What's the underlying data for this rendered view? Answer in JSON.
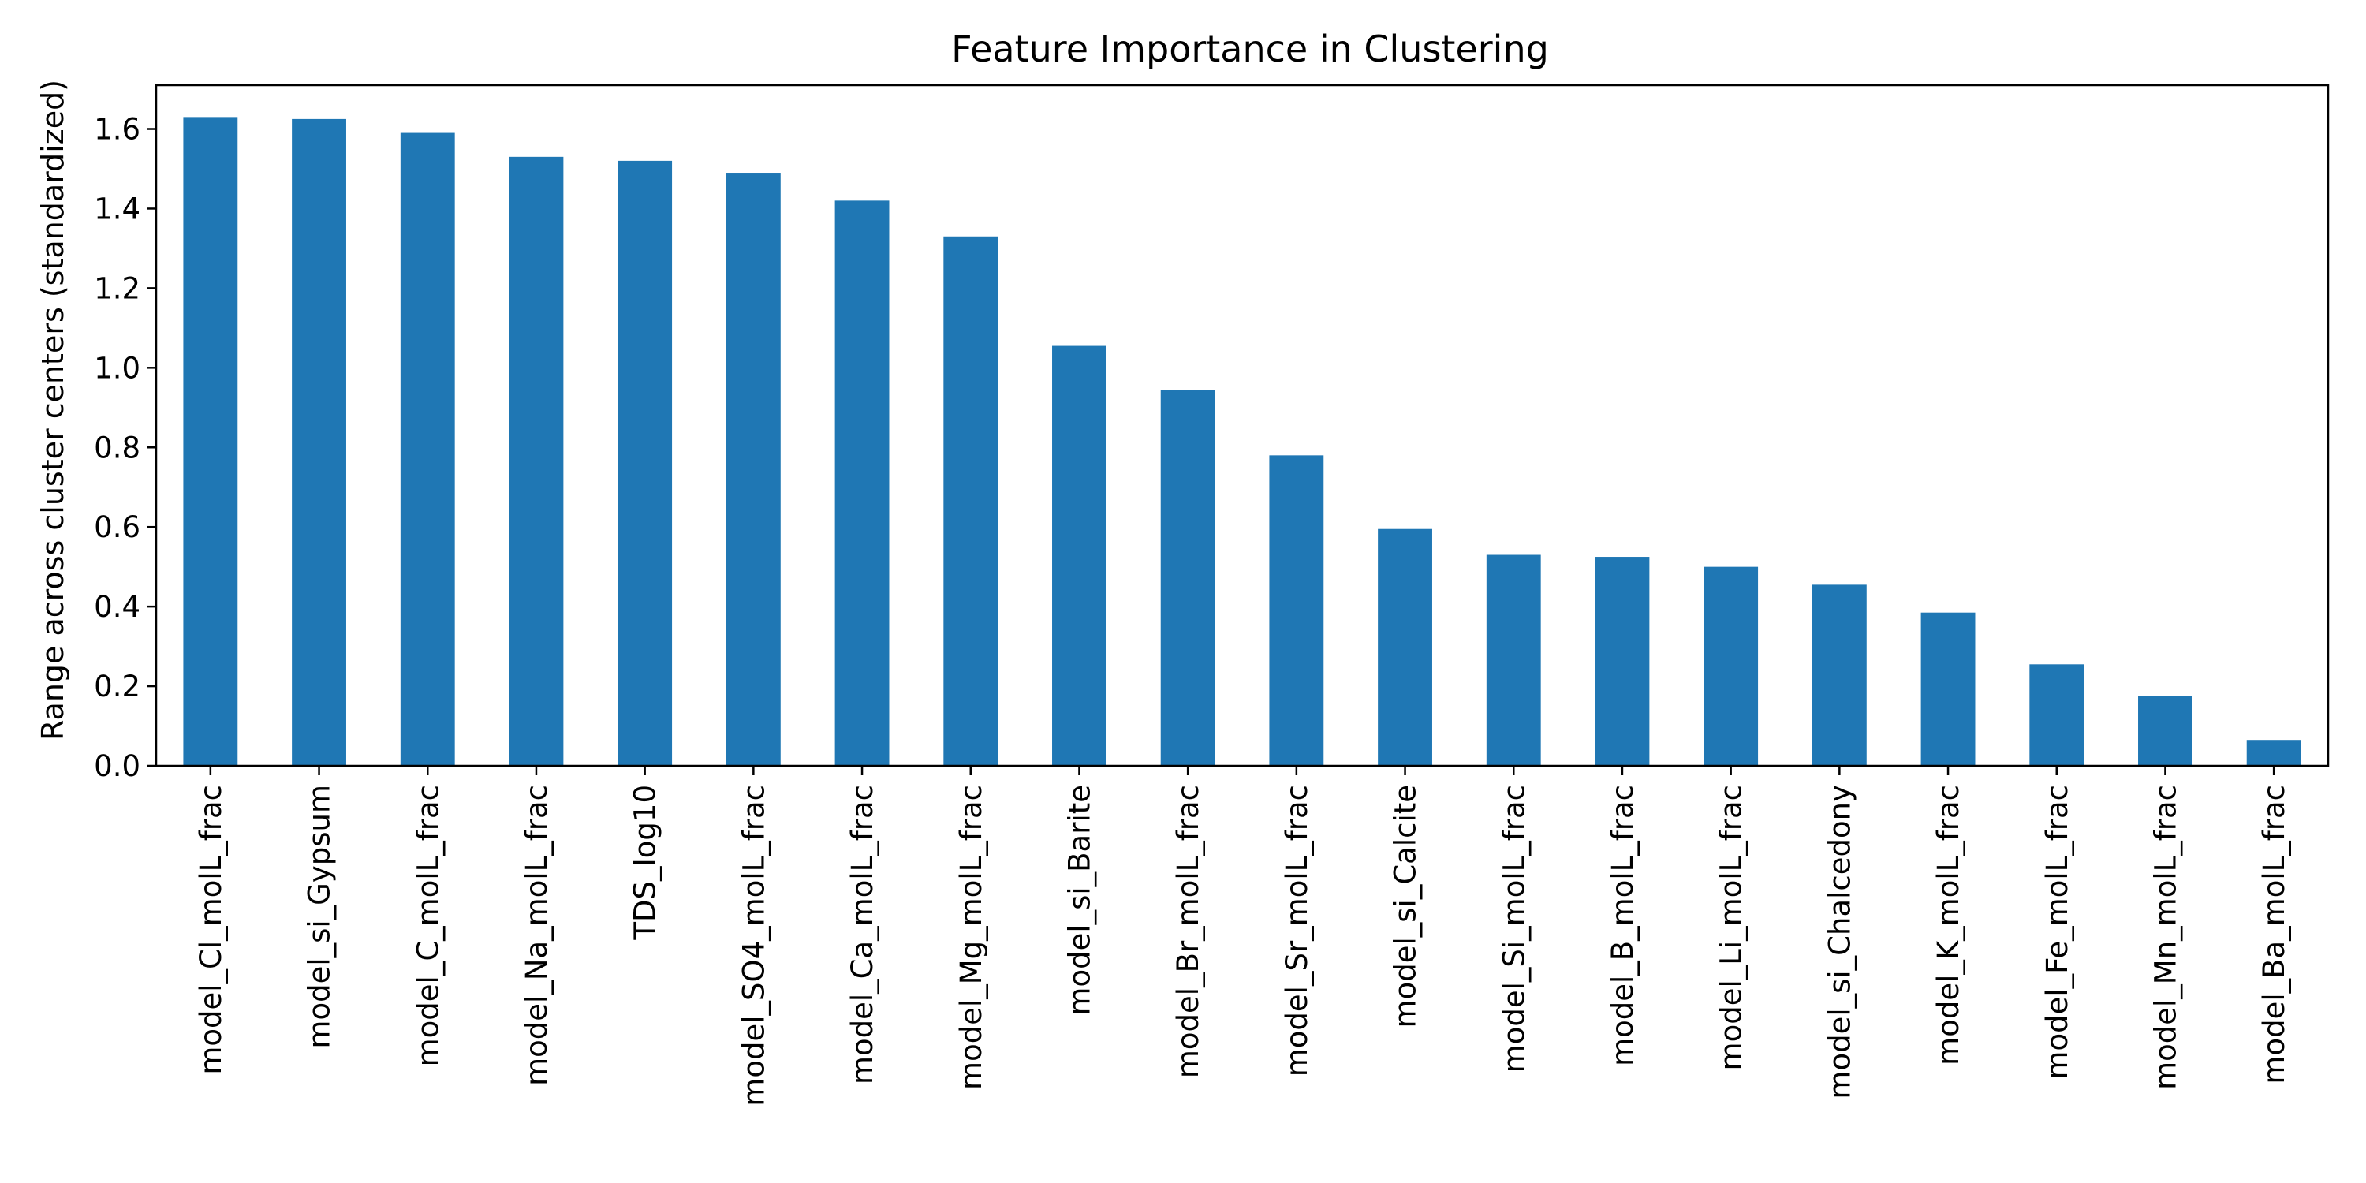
{
  "chart_data": {
    "type": "bar",
    "title": "Feature Importance in Clustering",
    "xlabel": "",
    "ylabel": "Range across cluster centers (standardized)",
    "categories": [
      "model_Cl_molL_frac",
      "model_si_Gypsum",
      "model_C_molL_frac",
      "model_Na_molL_frac",
      "TDS_log10",
      "model_SO4_molL_frac",
      "model_Ca_molL_frac",
      "model_Mg_molL_frac",
      "model_si_Barite",
      "model_Br_molL_frac",
      "model_Sr_molL_frac",
      "model_si_Calcite",
      "model_Si_molL_frac",
      "model_B_molL_frac",
      "model_Li_molL_frac",
      "model_si_Chalcedony",
      "model_K_molL_frac",
      "model_Fe_molL_frac",
      "model_Mn_molL_frac",
      "model_Ba_molL_frac"
    ],
    "values": [
      1.63,
      1.625,
      1.59,
      1.53,
      1.52,
      1.49,
      1.42,
      1.33,
      1.055,
      0.945,
      0.78,
      0.595,
      0.53,
      0.525,
      0.5,
      0.455,
      0.385,
      0.255,
      0.175,
      0.065
    ],
    "ylim": [
      0,
      1.71
    ],
    "yticks": [
      "0.0",
      "0.2",
      "0.4",
      "0.6",
      "0.8",
      "1.0",
      "1.2",
      "1.4",
      "1.6"
    ],
    "grid": false,
    "bar_color": "#1f77b4"
  }
}
